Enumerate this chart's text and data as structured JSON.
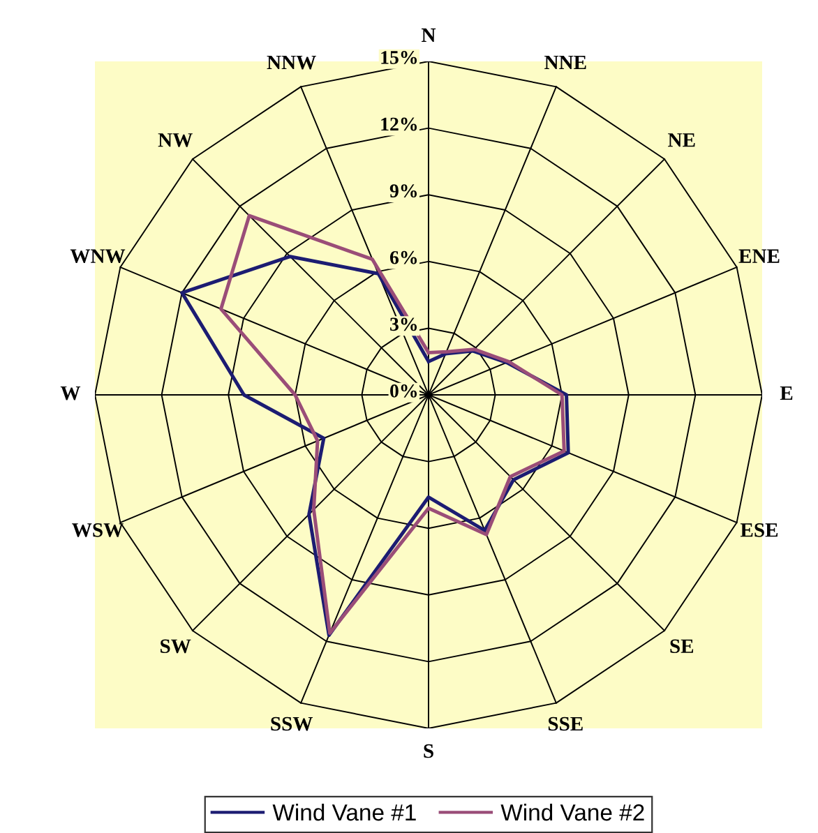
{
  "chart_data": {
    "type": "radar",
    "categories": [
      "N",
      "NNE",
      "NE",
      "ENE",
      "E",
      "ESE",
      "SE",
      "SSE",
      "S",
      "SSW",
      "SW",
      "WSW",
      "W",
      "WNW",
      "NW",
      "NNW"
    ],
    "series": [
      {
        "name": "Wind Vane #1",
        "color": "#1c1c72",
        "values": [
          1.5,
          2.0,
          2.8,
          3.8,
          6.2,
          6.8,
          5.4,
          6.6,
          4.6,
          11.7,
          7.6,
          5.1,
          8.3,
          12.0,
          8.8,
          5.9
        ]
      },
      {
        "name": "Wind Vane #2",
        "color": "#9a4d78",
        "values": [
          1.9,
          2.1,
          2.9,
          3.9,
          6.0,
          6.6,
          5.2,
          6.8,
          5.1,
          11.6,
          7.3,
          5.4,
          6.0,
          10.1,
          11.4,
          6.6
        ]
      }
    ],
    "ylim": [
      0,
      15
    ],
    "yticks": [
      {
        "value": 0,
        "label": "0%"
      },
      {
        "value": 3,
        "label": "3%"
      },
      {
        "value": 6,
        "label": "6%"
      },
      {
        "value": 9,
        "label": "9%"
      },
      {
        "value": 12,
        "label": "12%"
      },
      {
        "value": 15,
        "label": "15%"
      }
    ],
    "grid": true,
    "legend": "bottom",
    "marker": "none",
    "line_style": "solid"
  }
}
